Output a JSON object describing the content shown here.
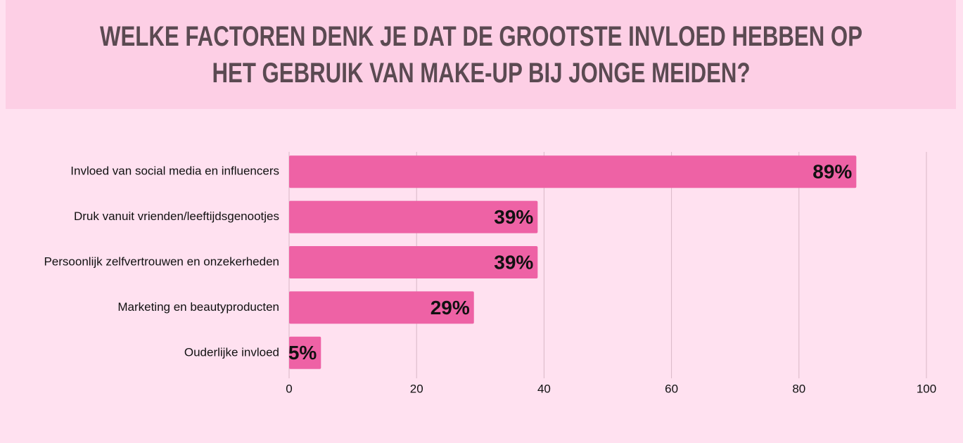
{
  "chart_data": {
    "type": "hbar",
    "title": "WELKE FACTOREN DENK JE DAT DE GROOTSTE INVLOED HEBBEN OP HET GEBRUIK VAN MAKE-UP BIJ JONGE MEIDEN?",
    "categories": [
      "Invloed van social media en influencers",
      "Druk vanuit vrienden/leeftijdsgenootjes",
      "Persoonlijk zelfvertrouwen en onzekerheden",
      "Marketing en beautyproducten",
      "Ouderlijke invloed"
    ],
    "values": [
      89,
      39,
      39,
      29,
      5
    ],
    "value_labels": [
      "89%",
      "39%",
      "39%",
      "29%",
      "5%"
    ],
    "color": "#ee62a5",
    "xlim": [
      0,
      100
    ],
    "xticks": [
      0,
      20,
      40,
      60,
      80,
      100
    ],
    "grid": true
  }
}
